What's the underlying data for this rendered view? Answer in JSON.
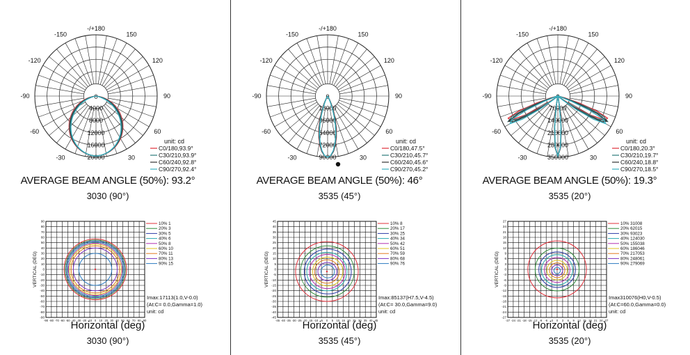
{
  "chart_data": [
    {
      "type": "polar",
      "angle_labels": [
        "-/+180",
        "-150",
        "150",
        "-120",
        "120",
        "-90",
        "90",
        "-60",
        "60",
        "-30",
        "30",
        "0"
      ],
      "radial_ticks": [
        4000,
        8000,
        12000,
        16000,
        20000
      ],
      "unit": "unit:  cd",
      "legend": [
        {
          "label": "C0/180,93.9°",
          "color": "#e0303a",
          "beam": 93.9
        },
        {
          "label": "C30/210,93.9°",
          "color": "#2a7a7a",
          "beam": 93.9
        },
        {
          "label": "C60/240,92.8°",
          "color": "#333333",
          "beam": 92.8
        },
        {
          "label": "C90/270,92.4°",
          "color": "#3ab0c0",
          "beam": 92.4
        }
      ],
      "title": "AVERAGE BEAM ANGLE (50%): 93.2°",
      "subtitle": "3030 (90°)"
    },
    {
      "type": "polar",
      "angle_labels": [
        "-/+180",
        "-150",
        "150",
        "-120",
        "120",
        "-90",
        "90",
        "-60",
        "60",
        "-30",
        "30",
        "0"
      ],
      "radial_ticks": [
        18000,
        36000,
        54000,
        72000,
        90000
      ],
      "unit": "unit:  cd",
      "legend": [
        {
          "label": "C0/180,47.5°",
          "color": "#e0303a",
          "beam": 47.5
        },
        {
          "label": "C30/210,45.7°",
          "color": "#2a7a7a",
          "beam": 45.7
        },
        {
          "label": "C60/240,45.6°",
          "color": "#333333",
          "beam": 45.6
        },
        {
          "label": "C90/270,45.2°",
          "color": "#3ab0c0",
          "beam": 45.2
        }
      ],
      "title": "AVERAGE BEAM ANGLE (50%): 46°",
      "subtitle": "3535 (45°)"
    },
    {
      "type": "polar",
      "angle_labels": [
        "-/+180",
        "-150",
        "150",
        "-120",
        "120",
        "-90",
        "90",
        "-60",
        "60",
        "-30",
        "30",
        "0"
      ],
      "radial_ticks": [
        70000,
        140000,
        210000,
        280000,
        350000
      ],
      "unit": "unit:  cd",
      "legend": [
        {
          "label": "C0/180,20.3°",
          "color": "#e0303a",
          "beam": 20.3
        },
        {
          "label": "C30/210,19.7°",
          "color": "#2a7a7a",
          "beam": 19.7
        },
        {
          "label": "C60/240,18.8°",
          "color": "#333333",
          "beam": 18.8
        },
        {
          "label": "C90/270,18.5°",
          "color": "#3ab0c0",
          "beam": 18.5
        }
      ],
      "title": "AVERAGE BEAM ANGLE (50%): 19.3°",
      "subtitle": "3535 (20°)"
    },
    {
      "type": "isolux",
      "xlim": [
        -90,
        90
      ],
      "ylim": [
        -90,
        90
      ],
      "step": 10,
      "x_ticks": [
        -90,
        -80,
        -70,
        -60,
        -50,
        -40,
        -30,
        -20,
        -10,
        0,
        10,
        20,
        30,
        40,
        50,
        60,
        70,
        80,
        90
      ],
      "y_ticks": [
        90,
        80,
        70,
        60,
        50,
        40,
        30,
        20,
        10,
        0,
        -10,
        -20,
        -30,
        -40,
        -50,
        -60,
        -70,
        -80,
        -90
      ],
      "levels": [
        {
          "label": "10%  1",
          "color": "#e0303a",
          "radius": 57
        },
        {
          "label": "20%  3",
          "color": "#2f8a3a",
          "radius": 55
        },
        {
          "label": "30%  5",
          "color": "#2a3aa8",
          "radius": 53
        },
        {
          "label": "40%  6",
          "color": "#2aaab0",
          "radius": 51
        },
        {
          "label": "50%  8",
          "color": "#b030b0",
          "radius": 49
        },
        {
          "label": "60% 10",
          "color": "#e0c020",
          "radius": 47
        },
        {
          "label": "70% 11",
          "color": "#e07a20",
          "radius": 44
        },
        {
          "label": "80% 13",
          "color": "#7a30c0",
          "radius": 40
        },
        {
          "label": "90% 15",
          "color": "#2a7ac0",
          "radius": 30
        }
      ],
      "imax_line1": "Imax:17113(1.0,V-0.0)",
      "imax_line2": "(At:C= 0.0,Gamma=1.0)",
      "unit": "unit: cd",
      "ylabel": "VERTICAL (DEG)",
      "xlabel": "Horizontal  (deg)",
      "subtitle": "3030 (90°)"
    },
    {
      "type": "isolux",
      "xlim": [
        -45,
        45
      ],
      "ylim": [
        -45,
        45
      ],
      "step": 5,
      "x_ticks": [
        -45,
        -40,
        -35,
        -30,
        -25,
        -20,
        -15,
        -10,
        -5,
        0,
        5,
        10,
        15,
        20,
        25,
        30,
        35,
        40,
        45
      ],
      "y_ticks": [
        45,
        40,
        35,
        30,
        25,
        20,
        15,
        10,
        5,
        0,
        -5,
        -10,
        -15,
        -20,
        -25,
        -30,
        -35,
        -40,
        -45
      ],
      "levels": [
        {
          "label": "10%  8",
          "color": "#e0303a",
          "radius": 28
        },
        {
          "label": "20% 17",
          "color": "#2f8a3a",
          "radius": 24
        },
        {
          "label": "30% 25",
          "color": "#2a3aa8",
          "radius": 21
        },
        {
          "label": "40% 34",
          "color": "#2aaab0",
          "radius": 18
        },
        {
          "label": "50% 42",
          "color": "#b030b0",
          "radius": 16
        },
        {
          "label": "60% 51",
          "color": "#e0c020",
          "radius": 13.5
        },
        {
          "label": "70% 59",
          "color": "#e07a20",
          "radius": 11
        },
        {
          "label": "80% 68",
          "color": "#7a30c0",
          "radius": 8.5
        },
        {
          "label": "90% 76",
          "color": "#2a7ac0",
          "radius": 6
        }
      ],
      "imax_line1": "Imax:85137(H7.5,V-4.5)",
      "imax_line2": "(At:C= 30.0,Gamma=9.0)",
      "unit": "unit: cd",
      "ylabel": "VERTICAL (DEG)",
      "xlabel": "Horizontal  (deg)",
      "subtitle": "3535 (45°)"
    },
    {
      "type": "isolux",
      "xlim": [
        -27,
        27
      ],
      "ylim": [
        -27,
        27
      ],
      "step": 3,
      "x_ticks": [
        -27,
        -24,
        -21,
        -18,
        -15,
        -12,
        -9,
        -6,
        -3,
        0,
        3,
        6,
        9,
        12,
        15,
        18,
        21,
        24,
        27
      ],
      "y_ticks": [
        27,
        24,
        21,
        18,
        15,
        12,
        9,
        6,
        3,
        0,
        -3,
        -6,
        -9,
        -12,
        -15,
        -18,
        -21,
        -24,
        -27
      ],
      "levels": [
        {
          "label": "10% 31008",
          "color": "#e0303a",
          "radius": 16
        },
        {
          "label": "20% 62015",
          "color": "#2f8a3a",
          "radius": 12
        },
        {
          "label": "30% 93023",
          "color": "#2a3aa8",
          "radius": 10
        },
        {
          "label": "40% 124030",
          "color": "#2aaab0",
          "radius": 8.5
        },
        {
          "label": "50% 155038",
          "color": "#b030b0",
          "radius": 7
        },
        {
          "label": "60% 186046",
          "color": "#e0c020",
          "radius": 5.5
        },
        {
          "label": "70% 217053",
          "color": "#e07a20",
          "radius": 4.2
        },
        {
          "label": "80% 248061",
          "color": "#7a30c0",
          "radius": 3
        },
        {
          "label": "90% 279069",
          "color": "#2a7ac0",
          "radius": 1.8
        }
      ],
      "imax_line1": "Imax310076(H0,V-0.5)",
      "imax_line2": "(At:C=60.0,Gamma=0.0)",
      "unit": "unit: cd",
      "ylabel": "VERTICAL (DEG)",
      "xlabel": "Horizontal  (deg)",
      "subtitle": "3535 (20°)"
    }
  ]
}
